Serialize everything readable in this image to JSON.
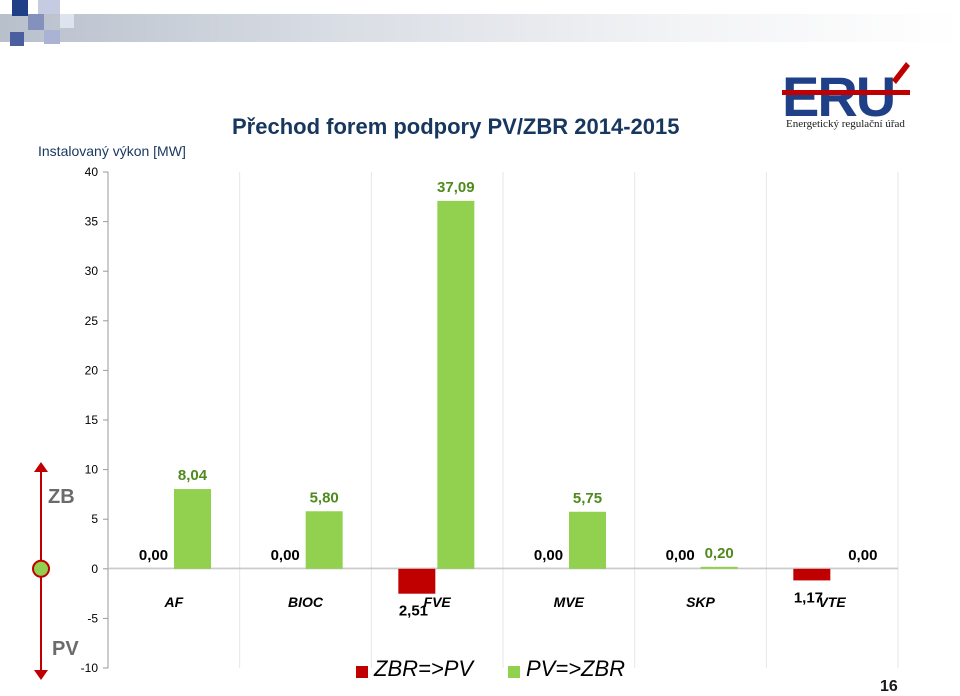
{
  "header": {
    "title": "Přechod forem podpory PV/ZBR 2014-2015",
    "logo_text": "ERÚ",
    "logo_subtitle": "Energetický regulační úřad"
  },
  "page_number": "16",
  "side_labels": {
    "top": "ZB",
    "bottom": "PV"
  },
  "colors": {
    "zbr_to_pv": "#c00000",
    "pv_to_zbr": "#92d050",
    "title": "#17375e"
  },
  "chart_data": {
    "type": "bar",
    "title": "Přechod forem podpory PV/ZBR 2014-2015",
    "ylabel": "Instalovaný výkon [MW]",
    "xlabel": "",
    "ylim": [
      -10,
      40
    ],
    "yticks": [
      40,
      35,
      30,
      25,
      20,
      15,
      10,
      5,
      0,
      -5,
      -10
    ],
    "categories": [
      "AF",
      "BIOC",
      "FVE",
      "MVE",
      "SKP",
      "VTE"
    ],
    "series": [
      {
        "name": "ZBR=>PV",
        "values": [
          0,
          0,
          -2.51,
          0,
          0,
          -1.17
        ],
        "labels": [
          "0,00",
          "0,00",
          "2,51",
          "0,00",
          "0,00",
          "1,17"
        ]
      },
      {
        "name": "PV=>ZBR",
        "values": [
          8.04,
          5.8,
          37.09,
          5.75,
          0.2,
          0
        ],
        "labels": [
          "8,04",
          "5,80",
          "37,09",
          "5,75",
          "0,20",
          "0,00"
        ]
      }
    ],
    "legend": "bottom",
    "grid": true
  }
}
